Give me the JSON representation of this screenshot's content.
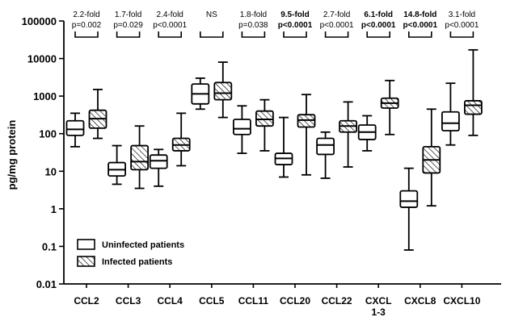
{
  "chart_data": {
    "type": "boxplot",
    "ylabel": "pg/mg protein",
    "yscale": "log",
    "ylim": [
      0.01,
      100000
    ],
    "yticks": [
      "0.01",
      "0.1",
      "1",
      "10",
      "100",
      "1000",
      "10000",
      "100000"
    ],
    "categories": [
      "CCL2",
      "CCL3",
      "CCL4",
      "CCL5",
      "CCL11",
      "CCL20",
      "CCL22",
      "CXCL 1-3",
      "CXCL8",
      "CXCL10"
    ],
    "category_lines": [
      [
        "CCL2"
      ],
      [
        "CCL3"
      ],
      [
        "CCL4"
      ],
      [
        "CCL5"
      ],
      [
        "CCL11"
      ],
      [
        "CCL20"
      ],
      [
        "CCL22"
      ],
      [
        "CXCL",
        "1-3"
      ],
      [
        "CXCL8"
      ],
      [
        "CXCL10"
      ]
    ],
    "series": [
      {
        "name": "Uninfected patients",
        "pattern": "open",
        "boxes": [
          {
            "min": 45,
            "q1": 90,
            "median": 130,
            "q3": 220,
            "max": 350
          },
          {
            "min": 4.5,
            "q1": 7.5,
            "median": 11,
            "q3": 17,
            "max": 48
          },
          {
            "min": 4,
            "q1": 12,
            "median": 19,
            "q3": 27,
            "max": 38
          },
          {
            "min": 450,
            "q1": 620,
            "median": 1150,
            "q3": 2100,
            "max": 3000
          },
          {
            "min": 30,
            "q1": 95,
            "median": 135,
            "q3": 240,
            "max": 550
          },
          {
            "min": 7,
            "q1": 15,
            "median": 22,
            "q3": 30,
            "max": 270
          },
          {
            "min": 6.5,
            "q1": 28,
            "median": 50,
            "q3": 75,
            "max": 110
          },
          {
            "min": 35,
            "q1": 70,
            "median": 110,
            "q3": 170,
            "max": 300
          },
          {
            "min": 0.08,
            "q1": 1.1,
            "median": 1.6,
            "q3": 3,
            "max": 12
          },
          {
            "min": 50,
            "q1": 120,
            "median": 190,
            "q3": 380,
            "max": 2200
          }
        ]
      },
      {
        "name": "Infected patients",
        "pattern": "hatched",
        "boxes": [
          {
            "min": 75,
            "q1": 140,
            "median": 250,
            "q3": 420,
            "max": 1500
          },
          {
            "min": 3.5,
            "q1": 11,
            "median": 18,
            "q3": 48,
            "max": 160
          },
          {
            "min": 14,
            "q1": 35,
            "median": 50,
            "q3": 75,
            "max": 350
          },
          {
            "min": 270,
            "q1": 800,
            "median": 1200,
            "q3": 2300,
            "max": 8000
          },
          {
            "min": 35,
            "q1": 160,
            "median": 240,
            "q3": 400,
            "max": 800
          },
          {
            "min": 8,
            "q1": 150,
            "median": 230,
            "q3": 320,
            "max": 1100
          },
          {
            "min": 13,
            "q1": 110,
            "median": 160,
            "q3": 220,
            "max": 700
          },
          {
            "min": 95,
            "q1": 480,
            "median": 650,
            "q3": 880,
            "max": 2600
          },
          {
            "min": 1.2,
            "q1": 9,
            "median": 20,
            "q3": 45,
            "max": 450
          },
          {
            "min": 90,
            "q1": 330,
            "median": 570,
            "q3": 750,
            "max": 17000
          }
        ]
      }
    ],
    "annotations": [
      {
        "fold": "2.2-fold",
        "p": "p=0.002",
        "bold": false
      },
      {
        "fold": "1.7-fold",
        "p": "p=0.029",
        "bold": false
      },
      {
        "fold": "2.4-fold",
        "p": "p<0.0001",
        "bold": false
      },
      {
        "fold": "NS",
        "p": "",
        "bold": false
      },
      {
        "fold": "1.8-fold",
        "p": "p=0.038",
        "bold": false
      },
      {
        "fold": "9.5-fold",
        "p": "p<0.0001",
        "bold": true
      },
      {
        "fold": "2.7-fold",
        "p": "p<0.0001",
        "bold": false
      },
      {
        "fold": "6.1-fold",
        "p": "p<0.0001",
        "bold": true
      },
      {
        "fold": "14.8-fold",
        "p": "p<0.0001",
        "bold": true
      },
      {
        "fold": "3.1-fold",
        "p": "p<0.0001",
        "bold": false
      }
    ],
    "legend": {
      "position": "bottom-left"
    },
    "grid": false
  }
}
